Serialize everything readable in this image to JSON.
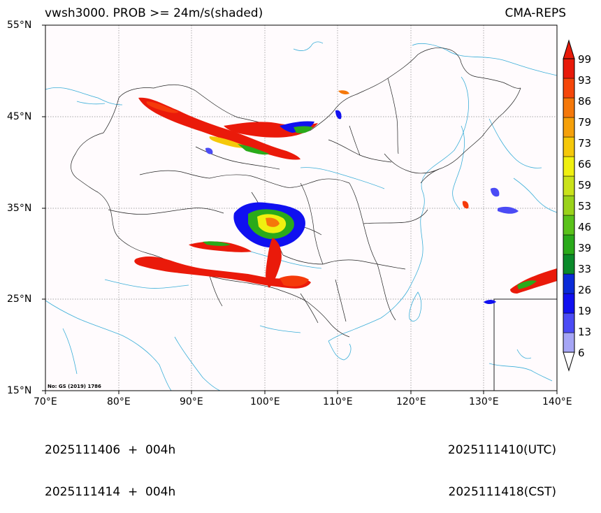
{
  "title": {
    "left": "vwsh3000. PROB >= 24m/s(shaded)",
    "right": "CMA-REPS"
  },
  "axes": {
    "lat_labels": [
      "55°N",
      "45°N",
      "35°N",
      "25°N",
      "15°N"
    ],
    "lon_labels": [
      "70°E",
      "80°E",
      "90°E",
      "100°E",
      "110°E",
      "120°E",
      "130°E",
      "140°E"
    ]
  },
  "map_note": "No: GS (2019) 1786",
  "colorbar": {
    "labels": [
      "6",
      "13",
      "19",
      "26",
      "33",
      "39",
      "46",
      "53",
      "59",
      "66",
      "73",
      "79",
      "86",
      "93",
      "99"
    ],
    "colors": [
      "#a5a5f5",
      "#4b4bf5",
      "#1010f0",
      "#0a2ad8",
      "#0a8a2a",
      "#2aaa1a",
      "#5ac21a",
      "#9ad21a",
      "#cae21a",
      "#f0f010",
      "#f5c80a",
      "#f5a00a",
      "#f5780a",
      "#f5460a",
      "#e81a0a"
    ]
  },
  "footer": {
    "init_utc": "2025111406  +  004h",
    "init_cst": "2025111414  +  004h",
    "valid_utc": "2025111410(UTC)",
    "valid_cst": "2025111418(CST)"
  }
}
